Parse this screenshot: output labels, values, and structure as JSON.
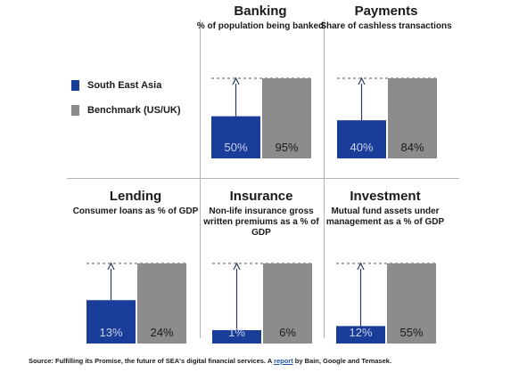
{
  "legend": {
    "sea_label": "South East Asia",
    "benchmark_label": "Benchmark (US/UK)"
  },
  "colors": {
    "sea": "#1a3d9a",
    "benchmark": "#8c8c8c",
    "arrow": "#2b3a5c",
    "dashed": "#555555"
  },
  "chart_data": {
    "type": "bar",
    "series": [
      {
        "name": "South East Asia"
      },
      {
        "name": "Benchmark (US/UK)"
      }
    ],
    "panels": [
      {
        "title": "Banking",
        "subtitle": "% of population being banked",
        "sea": 50,
        "benchmark": 95,
        "sea_label": "50%",
        "benchmark_label": "95%"
      },
      {
        "title": "Payments",
        "subtitle": "Share of cashless transactions",
        "sea": 40,
        "benchmark": 84,
        "sea_label": "40%",
        "benchmark_label": "84%"
      },
      {
        "title": "Lending",
        "subtitle": "Consumer loans as % of GDP",
        "sea": 13,
        "benchmark": 24,
        "sea_label": "13%",
        "benchmark_label": "24%"
      },
      {
        "title": "Insurance",
        "subtitle": "Non-life insurance gross written premiums as a % of GDP",
        "sea": 1,
        "benchmark": 6,
        "sea_label": "1%",
        "benchmark_label": "6%"
      },
      {
        "title": "Investment",
        "subtitle": "Mutual fund assets under management as a % of GDP",
        "sea": 12,
        "benchmark": 55,
        "sea_label": "12%",
        "benchmark_label": "55%"
      }
    ]
  },
  "source": {
    "prefix": "Source: Fulfilling its Promise, the future of SEA's digital financial services. A ",
    "link_text": "report",
    "suffix": " by Bain, Google and Temasek."
  }
}
